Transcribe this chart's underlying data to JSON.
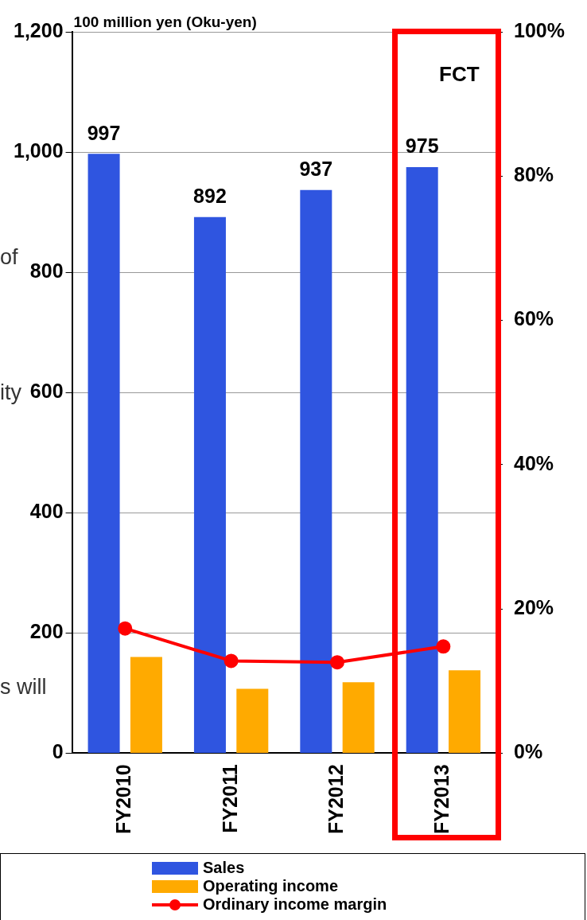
{
  "chart_data": {
    "type": "bar",
    "ylabel": "100 million yen (Oku-yen)",
    "categories": [
      "FY2010",
      "FY2011",
      "FY2012",
      "FY2013"
    ],
    "series": [
      {
        "name": "Sales",
        "color": "#2f55e0",
        "values": [
          997,
          892,
          937,
          975
        ],
        "value_labels": [
          "997",
          "892",
          "937",
          "975"
        ]
      },
      {
        "name": "Operating income",
        "color": "#ffaa00",
        "values": [
          160,
          107,
          118,
          138
        ]
      },
      {
        "name": "Ordinary income margin",
        "type": "line",
        "axis": "y2",
        "color": "#ff0000",
        "values": [
          17.3,
          12.8,
          12.6,
          14.8
        ],
        "marker": "circle",
        "line_style": "solid"
      }
    ],
    "ylim": [
      0,
      1200
    ],
    "yticks": [
      {
        "value": 0,
        "label": "0"
      },
      {
        "value": 200,
        "label": "200"
      },
      {
        "value": 400,
        "label": "400"
      },
      {
        "value": 600,
        "label": "600"
      },
      {
        "value": 800,
        "label": "800"
      },
      {
        "value": 1000,
        "label": "1,000"
      },
      {
        "value": 1200,
        "label": "1,200"
      }
    ],
    "y2lim": [
      0,
      100
    ],
    "y2ticks": [
      {
        "value": 0,
        "label": "0%"
      },
      {
        "value": 20,
        "label": "20%"
      },
      {
        "value": 40,
        "label": "40%"
      },
      {
        "value": 60,
        "label": "60%"
      },
      {
        "value": 80,
        "label": "80%"
      },
      {
        "value": 100,
        "label": "100%"
      }
    ],
    "annotations": [
      "FCT",
      "of",
      "ity",
      "s will"
    ],
    "grid": "y",
    "legend": "bottom"
  }
}
